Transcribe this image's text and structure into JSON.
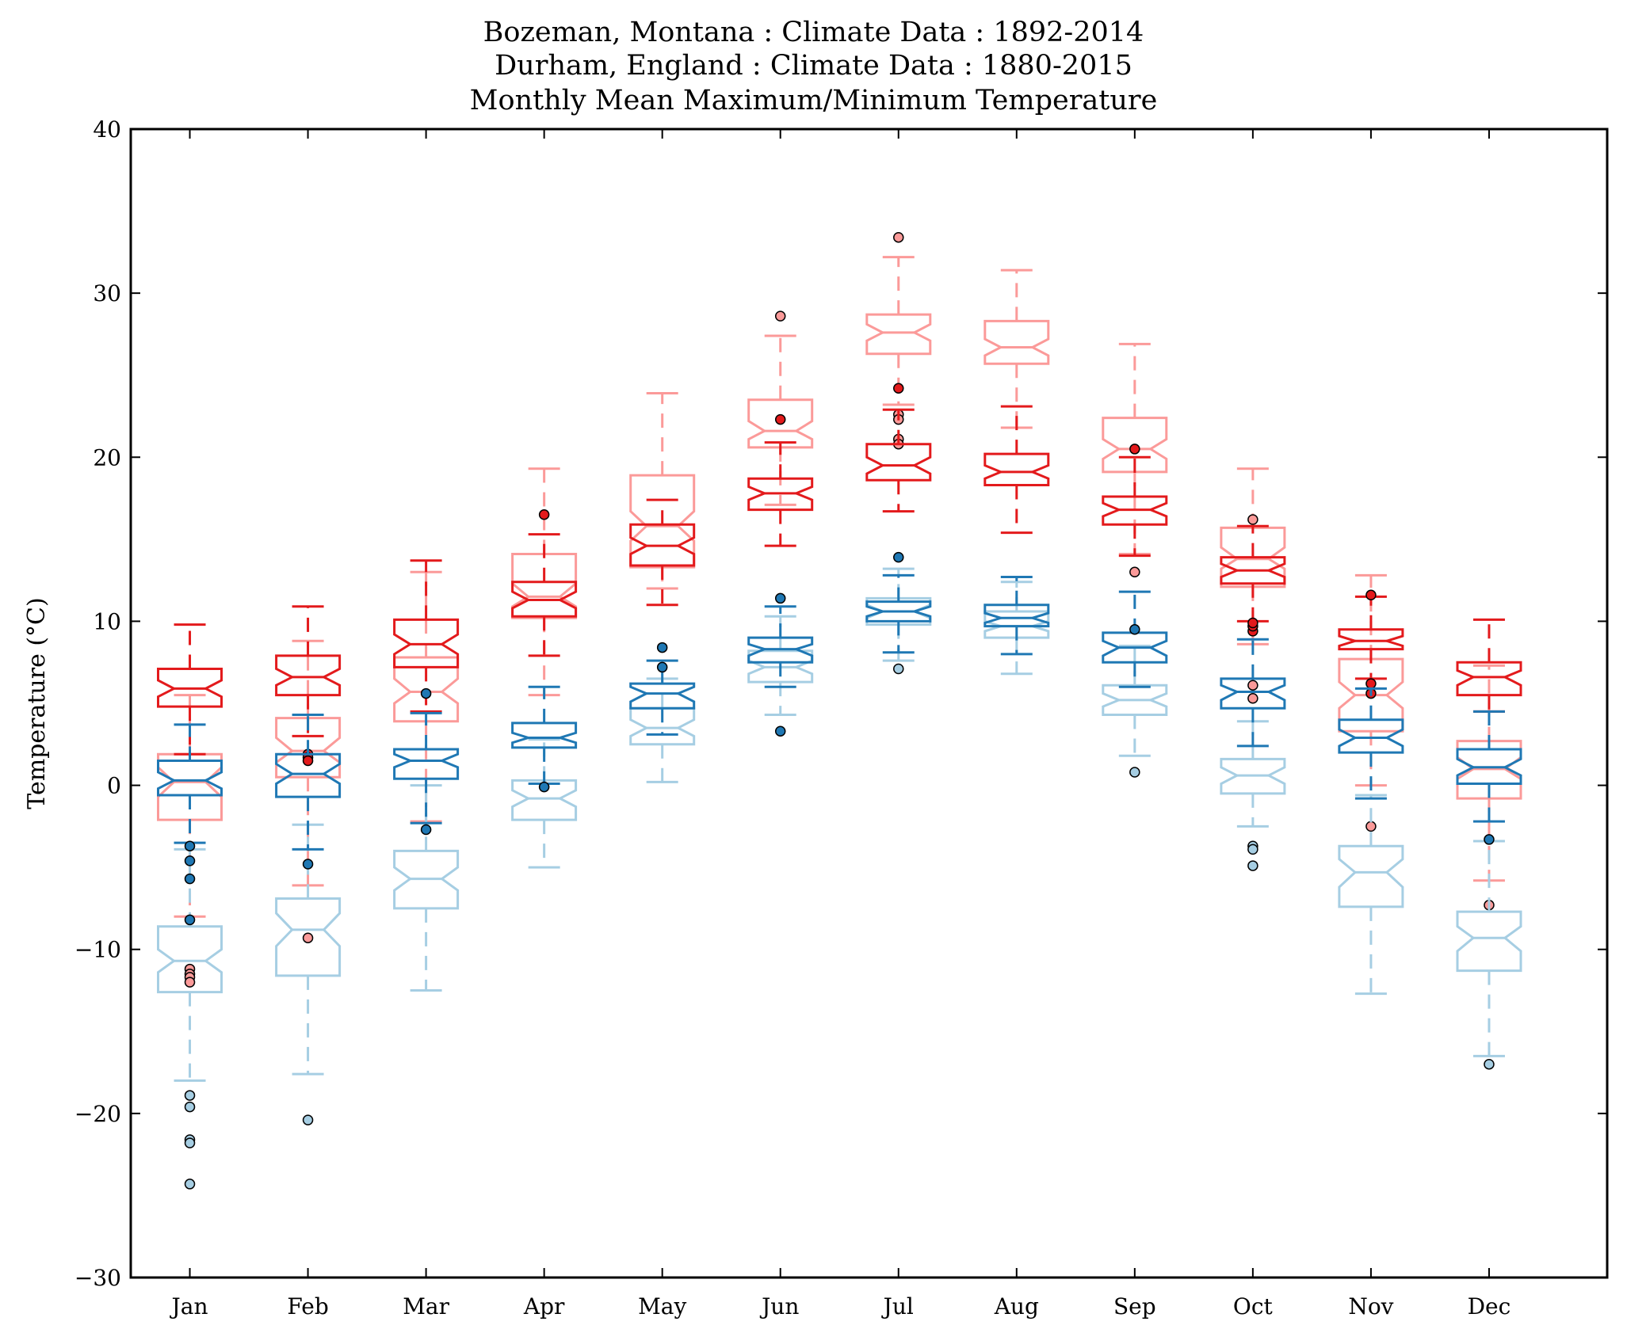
{
  "chart_data": {
    "type": "box",
    "title_lines": [
      "Bozeman, Montana : Climate Data : 1892-2014",
      "Durham, England : Climate Data : 1880-2015",
      "Monthly Mean Maximum/Minimum Temperature"
    ],
    "xlabel": "",
    "ylabel": "Temperature (°C)",
    "ylim": [
      -30,
      40
    ],
    "yticks": [
      -30,
      -20,
      -10,
      0,
      10,
      20,
      30,
      40
    ],
    "ytick_labels": [
      "−30",
      "−20",
      "−10",
      "0",
      "10",
      "20",
      "30",
      "40"
    ],
    "categories": [
      "Jan",
      "Feb",
      "Mar",
      "Apr",
      "May",
      "Jun",
      "Jul",
      "Aug",
      "Sep",
      "Oct",
      "Nov",
      "Dec"
    ],
    "grid": false,
    "legend": "none",
    "series": [
      {
        "color": "#fb9a99",
        "stats": [
          {
            "q1": -2.1,
            "med": 0.2,
            "q3": 1.9,
            "nlo": -0.7,
            "nhi": 1.1,
            "wlo": -8.0,
            "whi": 5.5,
            "fliers": [
              -11.2,
              -11.5,
              -11.7,
              -12.0
            ]
          },
          {
            "q1": 0.5,
            "med": 2.1,
            "q3": 4.1,
            "nlo": 1.4,
            "nhi": 2.9,
            "wlo": -6.1,
            "whi": 8.8,
            "fliers": [
              -9.3
            ]
          },
          {
            "q1": 3.9,
            "med": 5.7,
            "q3": 7.8,
            "nlo": 5.0,
            "nhi": 6.5,
            "wlo": -2.2,
            "whi": 13.0,
            "fliers": []
          },
          {
            "q1": 10.2,
            "med": 11.5,
            "q3": 14.1,
            "nlo": 10.9,
            "nhi": 12.3,
            "wlo": 5.5,
            "whi": 19.3,
            "fliers": []
          },
          {
            "q1": 13.3,
            "med": 15.8,
            "q3": 18.9,
            "nlo": 14.9,
            "nhi": 16.7,
            "wlo": 12.0,
            "whi": 23.9,
            "fliers": []
          },
          {
            "q1": 20.6,
            "med": 21.6,
            "q3": 23.5,
            "nlo": 21.1,
            "nhi": 22.2,
            "wlo": 17.1,
            "whi": 27.4,
            "fliers": [
              28.6
            ]
          },
          {
            "q1": 26.3,
            "med": 27.6,
            "q3": 28.7,
            "nlo": 27.1,
            "nhi": 28.1,
            "wlo": 23.2,
            "whi": 32.2,
            "fliers": [
              33.4,
              22.6,
              22.3,
              21.1,
              20.8
            ]
          },
          {
            "q1": 25.7,
            "med": 26.7,
            "q3": 28.3,
            "nlo": 26.2,
            "nhi": 27.2,
            "wlo": 21.8,
            "whi": 31.4,
            "fliers": []
          },
          {
            "q1": 19.1,
            "med": 20.5,
            "q3": 22.4,
            "nlo": 19.9,
            "nhi": 21.1,
            "wlo": 14.1,
            "whi": 26.9,
            "fliers": [
              13.0
            ]
          },
          {
            "q1": 12.1,
            "med": 13.8,
            "q3": 15.7,
            "nlo": 13.2,
            "nhi": 14.5,
            "wlo": 8.6,
            "whi": 19.3,
            "fliers": [
              16.2,
              6.1,
              5.3
            ]
          },
          {
            "q1": 3.3,
            "med": 5.5,
            "q3": 7.7,
            "nlo": 4.7,
            "nhi": 6.3,
            "wlo": 0.0,
            "whi": 12.8,
            "fliers": [
              -2.5
            ]
          },
          {
            "q1": -0.8,
            "med": 1.0,
            "q3": 2.7,
            "nlo": 0.4,
            "nhi": 1.7,
            "wlo": -5.8,
            "whi": 7.3,
            "fliers": [
              -7.3
            ]
          }
        ]
      },
      {
        "color": "#e31a1c",
        "stats": [
          {
            "q1": 4.8,
            "med": 5.9,
            "q3": 7.1,
            "nlo": 5.4,
            "nhi": 6.4,
            "wlo": 1.9,
            "whi": 9.8,
            "fliers": []
          },
          {
            "q1": 5.5,
            "med": 6.6,
            "q3": 7.9,
            "nlo": 6.1,
            "nhi": 7.1,
            "wlo": 3.0,
            "whi": 10.9,
            "fliers": [
              1.9,
              1.7,
              1.5
            ]
          },
          {
            "q1": 7.2,
            "med": 8.6,
            "q3": 10.1,
            "nlo": 8.0,
            "nhi": 9.2,
            "wlo": 4.5,
            "whi": 13.7,
            "fliers": []
          },
          {
            "q1": 10.3,
            "med": 11.3,
            "q3": 12.4,
            "nlo": 10.8,
            "nhi": 11.8,
            "wlo": 7.9,
            "whi": 15.3,
            "fliers": [
              16.5
            ]
          },
          {
            "q1": 13.4,
            "med": 14.6,
            "q3": 15.9,
            "nlo": 14.1,
            "nhi": 15.1,
            "wlo": 11.0,
            "whi": 17.4,
            "fliers": []
          },
          {
            "q1": 16.8,
            "med": 17.8,
            "q3": 18.7,
            "nlo": 17.4,
            "nhi": 18.2,
            "wlo": 14.6,
            "whi": 20.9,
            "fliers": [
              22.3
            ]
          },
          {
            "q1": 18.6,
            "med": 19.5,
            "q3": 20.8,
            "nlo": 19.0,
            "nhi": 20.0,
            "wlo": 16.7,
            "whi": 22.9,
            "fliers": [
              24.2
            ]
          },
          {
            "q1": 18.3,
            "med": 19.1,
            "q3": 20.2,
            "nlo": 18.7,
            "nhi": 19.5,
            "wlo": 15.4,
            "whi": 23.1,
            "fliers": []
          },
          {
            "q1": 15.9,
            "med": 16.8,
            "q3": 17.6,
            "nlo": 16.4,
            "nhi": 17.2,
            "wlo": 14.0,
            "whi": 20.0,
            "fliers": [
              20.5
            ]
          },
          {
            "q1": 12.3,
            "med": 13.1,
            "q3": 13.9,
            "nlo": 12.7,
            "nhi": 13.5,
            "wlo": 10.0,
            "whi": 15.8,
            "fliers": [
              9.4,
              9.7,
              9.9
            ]
          },
          {
            "q1": 8.3,
            "med": 8.8,
            "q3": 9.5,
            "nlo": 8.5,
            "nhi": 9.1,
            "wlo": 6.5,
            "whi": 11.5,
            "fliers": [
              11.6,
              6.2,
              5.6
            ]
          },
          {
            "q1": 5.5,
            "med": 6.6,
            "q3": 7.5,
            "nlo": 6.1,
            "nhi": 7.0,
            "wlo": 4.5,
            "whi": 10.1,
            "fliers": []
          }
        ]
      },
      {
        "color": "#a6cee3",
        "stats": [
          {
            "q1": -12.6,
            "med": -10.7,
            "q3": -8.6,
            "nlo": -11.4,
            "nhi": -10.0,
            "wlo": -18.0,
            "whi": -3.9,
            "fliers": [
              -18.9,
              -19.6,
              -21.6,
              -21.8,
              -24.3
            ]
          },
          {
            "q1": -11.6,
            "med": -8.8,
            "q3": -6.9,
            "nlo": -9.8,
            "nhi": -7.8,
            "wlo": -17.6,
            "whi": -2.4,
            "fliers": [
              -20.4
            ]
          },
          {
            "q1": -7.5,
            "med": -5.7,
            "q3": -4.0,
            "nlo": -6.4,
            "nhi": -5.0,
            "wlo": -12.5,
            "whi": 0.0,
            "fliers": []
          },
          {
            "q1": -2.1,
            "med": -0.8,
            "q3": 0.3,
            "nlo": -1.3,
            "nhi": -0.3,
            "wlo": -5.0,
            "whi": 2.8,
            "fliers": []
          },
          {
            "q1": 2.5,
            "med": 3.5,
            "q3": 4.7,
            "nlo": 3.0,
            "nhi": 4.0,
            "wlo": 0.2,
            "whi": 6.5,
            "fliers": []
          },
          {
            "q1": 6.3,
            "med": 7.2,
            "q3": 8.2,
            "nlo": 6.8,
            "nhi": 7.6,
            "wlo": 4.3,
            "whi": 10.3,
            "fliers": []
          },
          {
            "q1": 9.8,
            "med": 10.6,
            "q3": 11.4,
            "nlo": 10.2,
            "nhi": 11.0,
            "wlo": 7.6,
            "whi": 13.2,
            "fliers": [
              7.1
            ]
          },
          {
            "q1": 9.0,
            "med": 9.7,
            "q3": 10.6,
            "nlo": 9.4,
            "nhi": 10.0,
            "wlo": 6.8,
            "whi": 12.4,
            "fliers": []
          },
          {
            "q1": 4.3,
            "med": 5.2,
            "q3": 6.1,
            "nlo": 4.8,
            "nhi": 5.6,
            "wlo": 1.8,
            "whi": 8.5,
            "fliers": [
              0.8
            ]
          },
          {
            "q1": -0.5,
            "med": 0.6,
            "q3": 1.6,
            "nlo": 0.1,
            "nhi": 1.1,
            "wlo": -2.5,
            "whi": 3.9,
            "fliers": [
              -3.7,
              -3.9,
              -4.9
            ]
          },
          {
            "q1": -7.4,
            "med": -5.3,
            "q3": -3.7,
            "nlo": -6.2,
            "nhi": -4.5,
            "wlo": -12.7,
            "whi": -0.6,
            "fliers": []
          },
          {
            "q1": -11.3,
            "med": -9.3,
            "q3": -7.7,
            "nlo": -10.1,
            "nhi": -8.6,
            "wlo": -16.5,
            "whi": -3.4,
            "fliers": [
              -17.0
            ]
          }
        ]
      },
      {
        "color": "#1f78b4",
        "stats": [
          {
            "q1": -0.6,
            "med": 0.3,
            "q3": 1.5,
            "nlo": -0.2,
            "nhi": 0.8,
            "wlo": -3.5,
            "whi": 3.7,
            "fliers": [
              -3.7,
              -4.6,
              -5.7,
              -8.2
            ]
          },
          {
            "q1": -0.7,
            "med": 0.7,
            "q3": 1.9,
            "nlo": 0.1,
            "nhi": 1.3,
            "wlo": -3.9,
            "whi": 4.3,
            "fliers": [
              -4.8
            ]
          },
          {
            "q1": 0.4,
            "med": 1.5,
            "q3": 2.2,
            "nlo": 1.1,
            "nhi": 1.9,
            "wlo": -2.3,
            "whi": 4.4,
            "fliers": [
              5.6,
              -2.7
            ]
          },
          {
            "q1": 2.3,
            "med": 2.9,
            "q3": 3.8,
            "nlo": 2.6,
            "nhi": 3.2,
            "wlo": 0.1,
            "whi": 6.0,
            "fliers": [
              -0.1
            ]
          },
          {
            "q1": 4.7,
            "med": 5.6,
            "q3": 6.2,
            "nlo": 5.1,
            "nhi": 6.0,
            "wlo": 3.1,
            "whi": 7.6,
            "fliers": [
              8.4,
              7.2
            ]
          },
          {
            "q1": 7.5,
            "med": 8.3,
            "q3": 9.0,
            "nlo": 7.9,
            "nhi": 8.6,
            "wlo": 6.0,
            "whi": 10.9,
            "fliers": [
              11.4,
              3.3
            ]
          },
          {
            "q1": 10.0,
            "med": 10.6,
            "q3": 11.2,
            "nlo": 10.3,
            "nhi": 10.9,
            "wlo": 8.1,
            "whi": 12.8,
            "fliers": [
              13.9
            ]
          },
          {
            "q1": 9.7,
            "med": 10.2,
            "q3": 11.0,
            "nlo": 9.9,
            "nhi": 10.5,
            "wlo": 8.0,
            "whi": 12.7,
            "fliers": []
          },
          {
            "q1": 7.5,
            "med": 8.4,
            "q3": 9.3,
            "nlo": 7.9,
            "nhi": 8.8,
            "wlo": 6.0,
            "whi": 11.8,
            "fliers": [
              9.5
            ]
          },
          {
            "q1": 4.7,
            "med": 5.7,
            "q3": 6.5,
            "nlo": 5.2,
            "nhi": 6.1,
            "wlo": 2.4,
            "whi": 8.9,
            "fliers": []
          },
          {
            "q1": 2.0,
            "med": 2.9,
            "q3": 4.0,
            "nlo": 2.4,
            "nhi": 3.4,
            "wlo": -0.8,
            "whi": 5.9,
            "fliers": []
          },
          {
            "q1": 0.1,
            "med": 1.1,
            "q3": 2.2,
            "nlo": 0.6,
            "nhi": 1.6,
            "wlo": -2.2,
            "whi": 4.5,
            "fliers": [
              -3.3
            ]
          }
        ]
      }
    ]
  }
}
